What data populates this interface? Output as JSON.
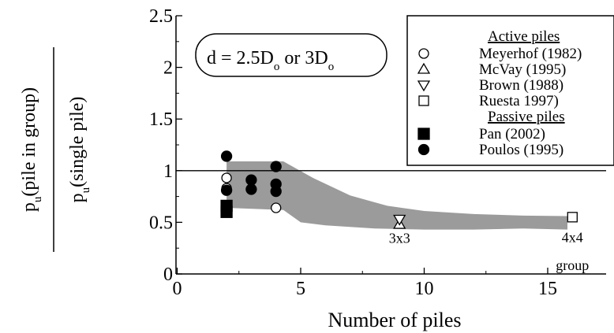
{
  "chart_data": {
    "type": "scatter",
    "title": "",
    "xlabel": "Number of piles",
    "ylabel": {
      "numerator_main": "p",
      "numerator_sub": "u",
      "numerator_rest": "(pile in group)",
      "denominator_main": "p",
      "denominator_sub": "u",
      "denominator_rest": "(single pile)"
    },
    "xlim": [
      0,
      17.5
    ],
    "ylim": [
      0,
      2.5
    ],
    "xticks": [
      0,
      5,
      10,
      15
    ],
    "xtick_labels": [
      "0",
      "5",
      "10",
      "15"
    ],
    "yticks": [
      0,
      0.5,
      1,
      1.5,
      2,
      2.5
    ],
    "ytick_labels": [
      "0",
      "0.5",
      "1",
      "1.5",
      "2",
      "2.5"
    ],
    "grid": false,
    "reference_line_y": 1.0,
    "legend": {
      "placement": "top-right",
      "groups": [
        {
          "heading": "Active piles",
          "entries": [
            {
              "label": "Meyerhof (1982)",
              "marker": "circle-open"
            },
            {
              "label": "McVay (1995)",
              "marker": "triangle-up-open"
            },
            {
              "label": "Brown (1988)",
              "marker": "triangle-down-open"
            },
            {
              "label": "Ruesta 1997)",
              "marker": "square-open"
            }
          ]
        },
        {
          "heading": "Passive piles",
          "entries": [
            {
              "label": "Pan (2002)",
              "marker": "square-filled"
            },
            {
              "label": "Poulos (1995)",
              "marker": "circle-filled"
            }
          ]
        }
      ]
    },
    "band": {
      "color": "#9b9b9b",
      "upper": [
        [
          2,
          1.09
        ],
        [
          4.3,
          1.09
        ],
        [
          5.5,
          0.93
        ],
        [
          7,
          0.76
        ],
        [
          8.5,
          0.66
        ],
        [
          10,
          0.61
        ],
        [
          12,
          0.58
        ],
        [
          14,
          0.565
        ],
        [
          15.8,
          0.56
        ]
      ],
      "lower": [
        [
          15.8,
          0.43
        ],
        [
          14,
          0.44
        ],
        [
          12,
          0.43
        ],
        [
          10,
          0.43
        ],
        [
          8,
          0.44
        ],
        [
          6,
          0.47
        ],
        [
          5,
          0.5
        ],
        [
          4.3,
          0.62
        ],
        [
          2,
          0.64
        ]
      ]
    },
    "series": [
      {
        "name": "Meyerhof (1982)",
        "marker": "circle-open",
        "points": [
          [
            2,
            0.93
          ],
          [
            2,
            0.83
          ],
          [
            4,
            0.64
          ]
        ]
      },
      {
        "name": "McVay (1995)",
        "marker": "triangle-up-open",
        "points": [
          [
            9,
            0.48
          ]
        ]
      },
      {
        "name": "Brown (1988)",
        "marker": "triangle-down-open",
        "points": [
          [
            9,
            0.53
          ]
        ]
      },
      {
        "name": "Ruesta 1997)",
        "marker": "square-open",
        "points": [
          [
            16,
            0.55
          ]
        ]
      },
      {
        "name": "Pan (2002)",
        "marker": "square-filled",
        "points": [
          [
            2,
            0.66
          ],
          [
            2,
            0.6
          ]
        ]
      },
      {
        "name": "Poulos (1995)",
        "marker": "circle-filled",
        "points": [
          [
            2,
            1.14
          ],
          [
            2,
            0.81
          ],
          [
            3,
            0.91
          ],
          [
            3,
            0.82
          ],
          [
            4,
            1.04
          ],
          [
            4,
            0.87
          ],
          [
            4,
            0.8
          ]
        ]
      }
    ],
    "annotations": [
      {
        "text": "3x3",
        "x": 9,
        "y": 0.3
      },
      {
        "text": "4x4",
        "x": 16,
        "y": 0.31
      },
      {
        "text": "group",
        "x": 16,
        "y": 0.04
      }
    ],
    "box_label": {
      "parts": [
        "d = 2.5D",
        "o",
        " or 3D",
        "o"
      ]
    }
  }
}
